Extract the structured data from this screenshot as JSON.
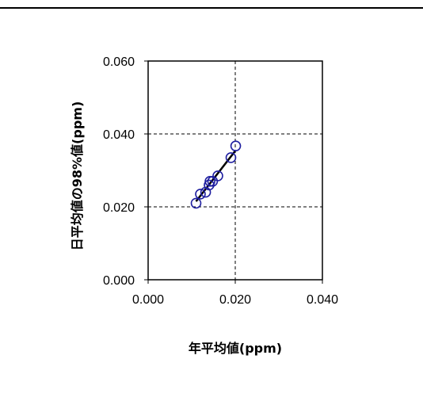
{
  "chart_data": {
    "type": "scatter",
    "title": "",
    "xlabel": "年平均値(ppm)",
    "ylabel": "日平均値の98%値(ppm)",
    "xlim": [
      0.0,
      0.04
    ],
    "ylim": [
      0.0,
      0.06
    ],
    "x_ticks": [
      "0.000",
      "0.020",
      "0.040"
    ],
    "y_ticks": [
      "0.000",
      "0.020",
      "0.040",
      "0.060"
    ],
    "grid": true,
    "grid_style": "dashed",
    "marker": "open-circle",
    "marker_color": "#1f1fa0",
    "trendline_color": "#000000",
    "series": [
      {
        "points": [
          {
            "x": 0.011,
            "y": 0.021
          },
          {
            "x": 0.012,
            "y": 0.0235
          },
          {
            "x": 0.0132,
            "y": 0.024
          },
          {
            "x": 0.014,
            "y": 0.026
          },
          {
            "x": 0.0142,
            "y": 0.027
          },
          {
            "x": 0.0148,
            "y": 0.027
          },
          {
            "x": 0.016,
            "y": 0.0285
          },
          {
            "x": 0.019,
            "y": 0.0335
          },
          {
            "x": 0.0201,
            "y": 0.0367
          }
        ]
      }
    ],
    "trendline": {
      "x": [
        0.011,
        0.0201
      ],
      "y": [
        0.0215,
        0.0355
      ]
    }
  }
}
